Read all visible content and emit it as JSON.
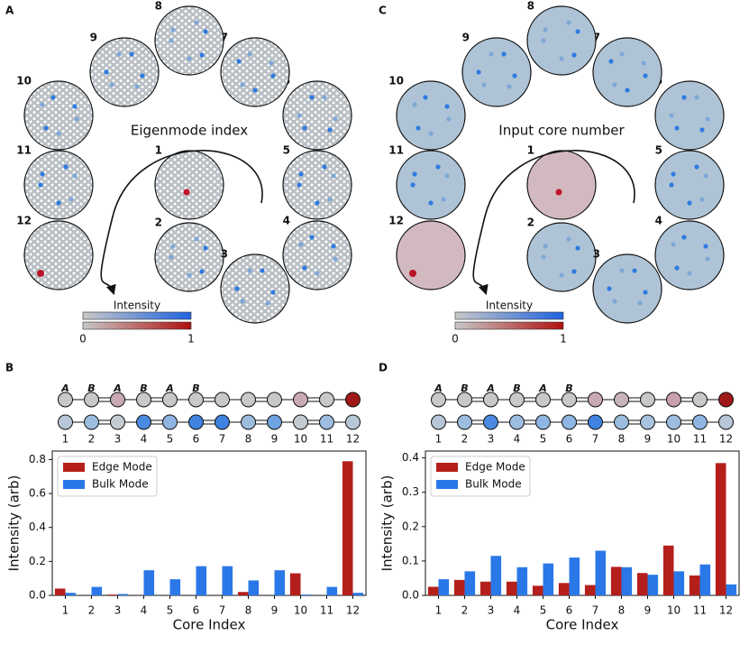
{
  "panel_labels": [
    "A",
    "B",
    "C",
    "D"
  ],
  "diagrams": [
    {
      "title": "Eigenmode index",
      "cores": [
        "1",
        "2",
        "3",
        "4",
        "5",
        "6",
        "7",
        "8",
        "9",
        "10",
        "11",
        "12"
      ],
      "colorbar": {
        "label": "Intensity",
        "ticks": [
          "0",
          "1"
        ]
      }
    },
    {
      "title": "Input core number",
      "cores": [
        "1",
        "2",
        "3",
        "4",
        "5",
        "6",
        "7",
        "8",
        "9",
        "10",
        "11",
        "12"
      ],
      "colorbar": {
        "label": "Intensity",
        "ticks": [
          "0",
          "1"
        ]
      }
    }
  ],
  "chart_data": [
    {
      "type": "bar",
      "ylabel": "Intensity (arb)",
      "xlabel": "Core Index",
      "categories": [
        "1",
        "2",
        "3",
        "4",
        "5",
        "6",
        "7",
        "8",
        "9",
        "10",
        "11",
        "12"
      ],
      "ylim": [
        0,
        0.85
      ],
      "yticks": [
        {
          "value": 0,
          "label": "0.0"
        },
        {
          "value": 0.2,
          "label": "0.2"
        },
        {
          "value": 0.4,
          "label": "0.4"
        },
        {
          "value": 0.6,
          "label": "0.6"
        },
        {
          "value": 0.8,
          "label": "0.8"
        }
      ],
      "legend": "upper left",
      "sublattice_labels": [
        "A",
        "B",
        "A",
        "B",
        "A",
        "B"
      ],
      "chain_colors": [
        [
          "#c8c8c8",
          "#c8c8c8",
          "#c9a9b2",
          "#c8c8c8",
          "#c8c8c8",
          "#c8c8c8",
          "#c8c8c8",
          "#c8c8c8",
          "#c8c8c8",
          "#c9a9b2",
          "#c8c8c8",
          "#a01818"
        ],
        [
          "#b7c7d8",
          "#9dbde0",
          "#c4cbd2",
          "#4b8ae0",
          "#8fb6e2",
          "#3f82e0",
          "#3f82e0",
          "#9dbde0",
          "#6fa2e0",
          "#c4cbd2",
          "#9dbde0",
          "#b7c7d8"
        ]
      ],
      "series": [
        {
          "name": "Edge Mode",
          "color": "#b51f1b",
          "values": [
            0.04,
            0,
            0.005,
            0,
            0,
            0,
            0,
            0.02,
            0,
            0.13,
            0,
            0.79
          ]
        },
        {
          "name": "Bulk Mode",
          "color": "#2a78e8",
          "values": [
            0.015,
            0.05,
            0.008,
            0.148,
            0.095,
            0.172,
            0.172,
            0.088,
            0.148,
            0.005,
            0.05,
            0.015
          ]
        }
      ]
    },
    {
      "type": "bar",
      "ylabel": "Intensity (arb)",
      "xlabel": "Core Index",
      "categories": [
        "1",
        "2",
        "3",
        "4",
        "5",
        "6",
        "7",
        "8",
        "9",
        "10",
        "11",
        "12"
      ],
      "ylim": [
        0,
        0.42
      ],
      "yticks": [
        {
          "value": 0,
          "label": "0.0"
        },
        {
          "value": 0.1,
          "label": "0.1"
        },
        {
          "value": 0.2,
          "label": "0.2"
        },
        {
          "value": 0.3,
          "label": "0.3"
        },
        {
          "value": 0.4,
          "label": "0.4"
        }
      ],
      "legend": "upper left",
      "sublattice_labels": [
        "A",
        "B",
        "A",
        "B",
        "A",
        "B"
      ],
      "chain_colors": [
        [
          "#c8c8c8",
          "#c8c8c8",
          "#c8c8c8",
          "#c8c8c8",
          "#c8c8c8",
          "#c8c8c8",
          "#c9a9b2",
          "#c9b4ba",
          "#c8c8c8",
          "#c9a0ad",
          "#c8c8c8",
          "#a01818"
        ],
        [
          "#b7c7d8",
          "#9dbde0",
          "#4b8ae0",
          "#9dbde0",
          "#8fb6e2",
          "#8fb6e2",
          "#3f82e0",
          "#9dbde0",
          "#a9c3de",
          "#9dbde0",
          "#8fb6e2",
          "#b7c7d8"
        ]
      ],
      "series": [
        {
          "name": "Edge Mode",
          "color": "#b51f1b",
          "values": [
            0.025,
            0.045,
            0.04,
            0.04,
            0.028,
            0.036,
            0.03,
            0.083,
            0.065,
            0.145,
            0.058,
            0.385
          ]
        },
        {
          "name": "Bulk Mode",
          "color": "#2a78e8",
          "values": [
            0.047,
            0.07,
            0.115,
            0.082,
            0.093,
            0.11,
            0.13,
            0.082,
            0.06,
            0.07,
            0.09,
            0.032
          ]
        }
      ]
    }
  ]
}
